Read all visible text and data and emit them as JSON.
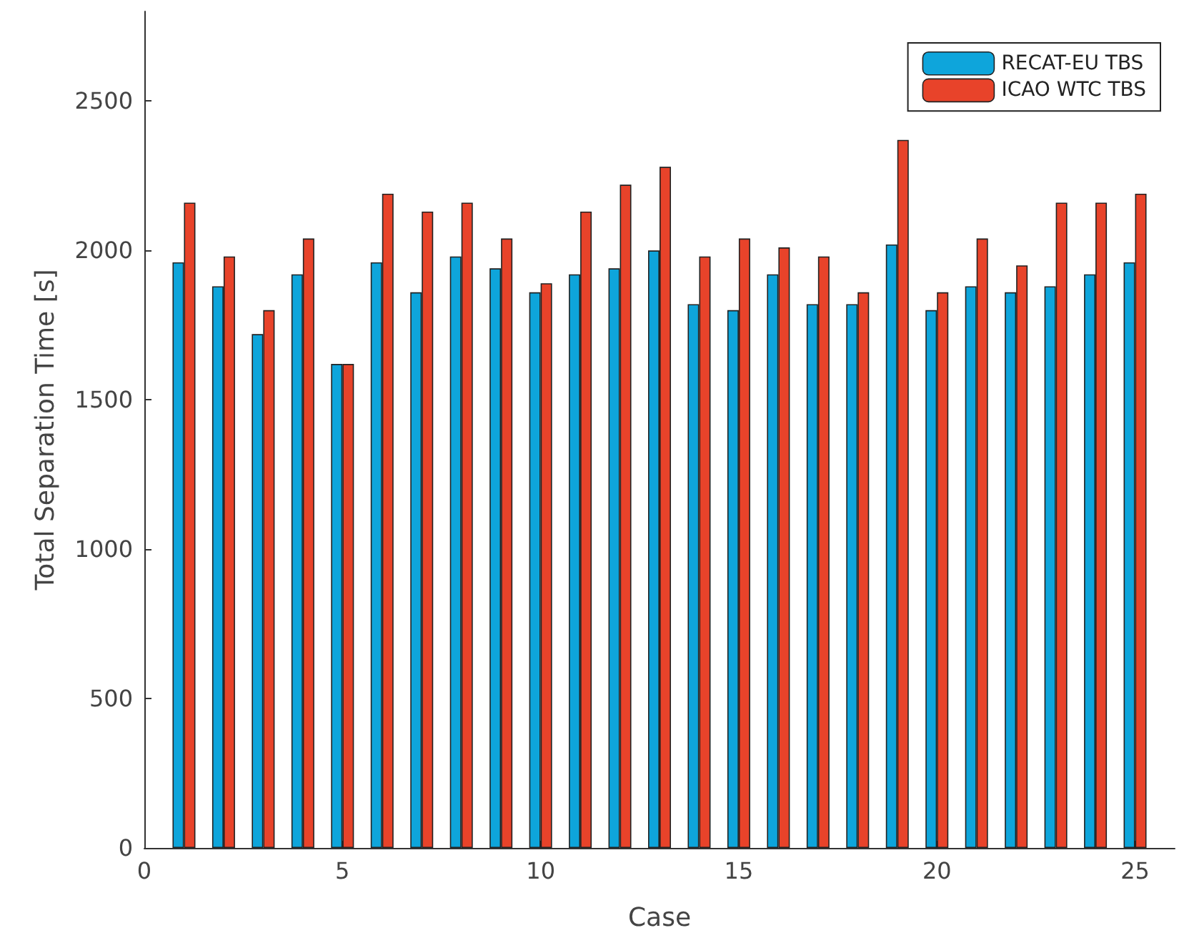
{
  "chart_data": {
    "type": "bar",
    "xlabel": "Case",
    "ylabel": "Total Separation Time [s]",
    "x": [
      1,
      2,
      3,
      4,
      5,
      6,
      7,
      8,
      9,
      10,
      11,
      12,
      13,
      14,
      15,
      16,
      17,
      18,
      19,
      20,
      21,
      22,
      23,
      24,
      25
    ],
    "series": [
      {
        "name": "RECAT-EU TBS",
        "color": "#0ea5db",
        "values": [
          1960,
          1880,
          1720,
          1920,
          1620,
          1960,
          1860,
          1980,
          1940,
          1860,
          1920,
          1940,
          2000,
          1820,
          1800,
          1920,
          1820,
          1820,
          2020,
          1800,
          1880,
          1860,
          1880,
          1920,
          1960
        ]
      },
      {
        "name": "ICAO WTC TBS",
        "color": "#e8432a",
        "values": [
          2160,
          1980,
          1800,
          2040,
          1620,
          2190,
          2130,
          2160,
          2040,
          1890,
          2130,
          2220,
          2280,
          1980,
          2040,
          2010,
          1980,
          1860,
          2370,
          1860,
          2040,
          1950,
          2160,
          2160,
          2190
        ]
      }
    ],
    "xlim": [
      0,
      26
    ],
    "xticks": [
      0,
      5,
      10,
      15,
      20,
      25
    ],
    "ylim": [
      0,
      2800
    ],
    "yticks": [
      0,
      500,
      1000,
      1500,
      2000,
      2500
    ],
    "grid": false,
    "legend": "top right"
  }
}
